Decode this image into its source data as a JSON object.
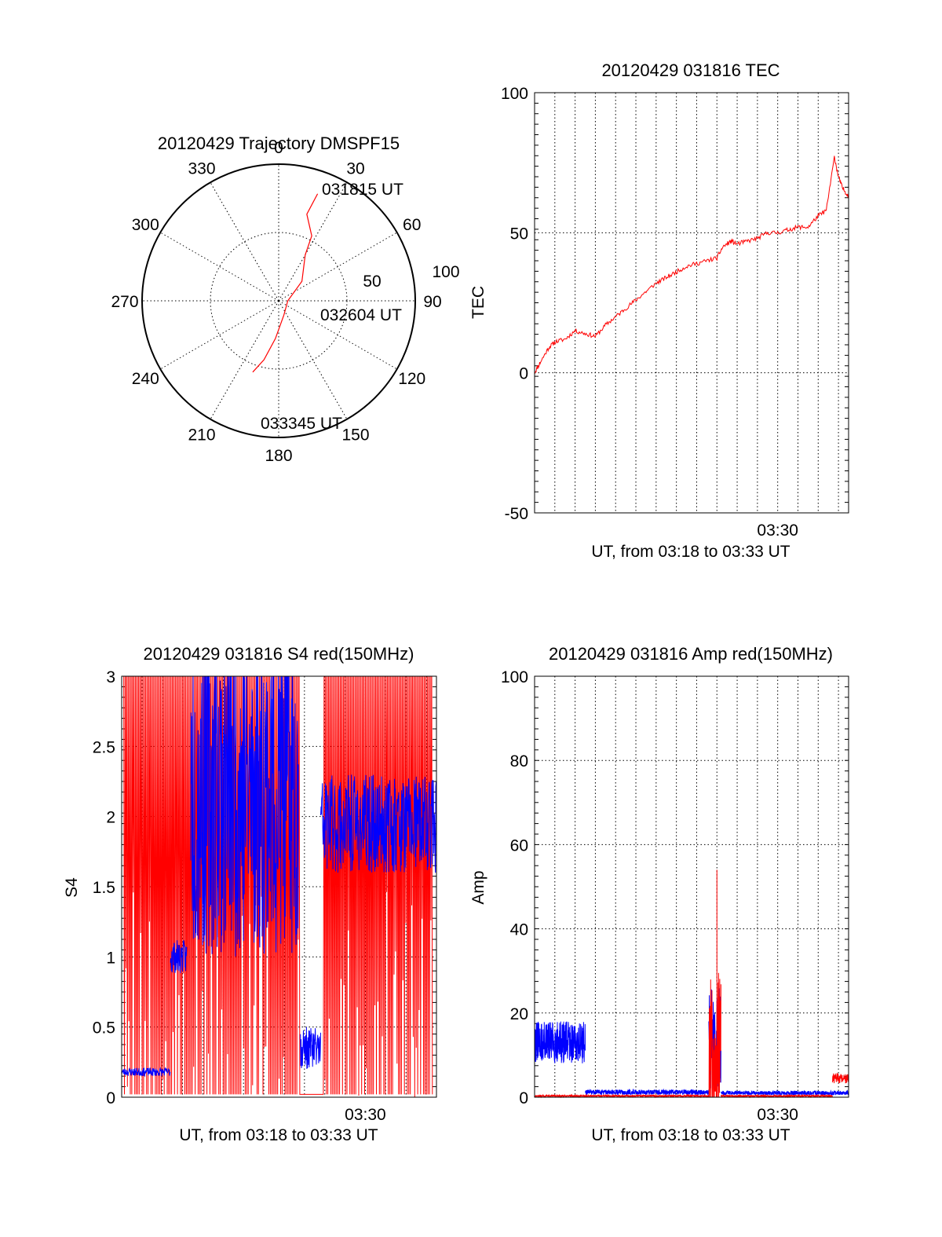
{
  "colors": {
    "red": "#ff0000",
    "blue": "#0000ff",
    "ink": "#000000"
  },
  "chart_data": [
    {
      "id": "polar",
      "type": "polar-trajectory",
      "title": "20120429 Trajectory DMSPF15",
      "azimuth_labels": [
        "0",
        "30",
        "60",
        "90",
        "120",
        "150",
        "180",
        "210",
        "240",
        "270",
        "300",
        "330"
      ],
      "radius_labels": [
        "50",
        "100"
      ],
      "trajectory": {
        "points_az_el": [
          [
            20,
            15
          ],
          [
            18,
            30
          ],
          [
            27,
            42
          ],
          [
            30,
            55
          ],
          [
            50,
            70
          ],
          [
            90,
            84
          ],
          [
            160,
            80
          ],
          [
            185,
            65
          ],
          [
            194,
            50
          ],
          [
            200,
            40
          ]
        ],
        "annotations": [
          {
            "text": "031815 UT"
          },
          {
            "text": "032604 UT"
          },
          {
            "text": "033345 UT"
          }
        ]
      }
    },
    {
      "id": "tec",
      "type": "line",
      "title": "20120429 031816 TEC",
      "xlabel": "UT, from 03:18 to 03:33 UT",
      "ylabel": "TEC",
      "xtick_labels": [
        {
          "t": 12.0,
          "label": "03:30"
        }
      ],
      "xlim": [
        0,
        15.5
      ],
      "ylim": [
        -50,
        100
      ],
      "yticks": [
        -50,
        0,
        50,
        100
      ],
      "series": [
        {
          "color": "red",
          "x": [
            0,
            0.3,
            0.7,
            1,
            1.5,
            2,
            2.5,
            3,
            3.5,
            4,
            4.5,
            5,
            5.5,
            6,
            6.5,
            7,
            7.5,
            8,
            8.5,
            9,
            9.3,
            9.7,
            10,
            10.5,
            11,
            11.5,
            12,
            12.5,
            13,
            13.5,
            14,
            14.4,
            14.8,
            15,
            15.2,
            15.5
          ],
          "y": [
            0,
            4,
            9,
            11,
            12,
            15,
            14,
            13,
            17,
            20,
            23,
            26,
            29,
            32,
            34,
            36,
            38,
            39,
            40,
            41,
            45,
            47,
            46,
            47,
            48,
            50,
            50,
            51,
            52,
            52,
            56,
            58,
            77,
            70,
            66,
            63
          ]
        }
      ]
    },
    {
      "id": "s4",
      "type": "line",
      "title": "20120429 031816 S4 red(150MHz)",
      "xlabel": "UT, from 03:18 to 03:33 UT",
      "ylabel": "S4",
      "xtick_labels": [
        {
          "t": 12.0,
          "label": "03:30"
        }
      ],
      "xlim": [
        0,
        15.5
      ],
      "ylim": [
        0,
        3
      ],
      "yticks": [
        0,
        0.5,
        1,
        1.5,
        2,
        2.5,
        3
      ],
      "ytick_labels": [
        "0",
        "0.5",
        "1",
        "1.5",
        "2",
        "2.5",
        "3"
      ],
      "series": [
        {
          "color": "red",
          "x_start": 0.1,
          "x_end": 15.3,
          "samples": 420,
          "seed": 7,
          "gap": [
            8.8,
            9.9
          ],
          "style": "spiky"
        },
        {
          "color": "blue",
          "segments": [
            {
              "x_start": 0.0,
              "x_end": 2.4,
              "level": 0.18,
              "amp": 0.03
            },
            {
              "x_start": 2.4,
              "x_end": 3.2,
              "level": 1.0,
              "amp": 0.12
            },
            {
              "x_start": 3.4,
              "x_end": 8.7,
              "level": 2.2,
              "amp": 1.2
            },
            {
              "x_start": 8.8,
              "x_end": 9.8,
              "level": 0.35,
              "amp": 0.15
            },
            {
              "x_start": 9.8,
              "x_end": 15.5,
              "level": 1.95,
              "amp": 0.35
            }
          ]
        }
      ]
    },
    {
      "id": "amp",
      "type": "line",
      "title": "20120429 031816 Amp red(150MHz)",
      "xlabel": "UT, from 03:18 to 03:33 UT",
      "ylabel": "Amp",
      "xtick_labels": [
        {
          "t": 12.0,
          "label": "03:30"
        }
      ],
      "xlim": [
        0,
        15.5
      ],
      "ylim": [
        0,
        100
      ],
      "yticks": [
        0,
        20,
        40,
        60,
        80,
        100
      ],
      "series": [
        {
          "color": "red",
          "segments": [
            {
              "x_start": 0.0,
              "x_end": 8.6,
              "level": 0.3,
              "amp": 0.2
            },
            {
              "x_start": 8.6,
              "x_end": 9.2,
              "level": 12,
              "amp": 18
            },
            {
              "x_start": 9.2,
              "x_end": 14.7,
              "level": 0.3,
              "amp": 0.2
            },
            {
              "x_start": 14.7,
              "x_end": 15.5,
              "level": 4.5,
              "amp": 1.2
            }
          ],
          "peak": {
            "x": 9.0,
            "y": 54
          }
        },
        {
          "color": "blue",
          "segments": [
            {
              "x_start": 0.0,
              "x_end": 2.5,
              "level": 13,
              "amp": 5
            },
            {
              "x_start": 2.5,
              "x_end": 8.6,
              "level": 1.2,
              "amp": 0.6
            },
            {
              "x_start": 8.6,
              "x_end": 9.2,
              "level": 14,
              "amp": 12
            },
            {
              "x_start": 9.2,
              "x_end": 15.5,
              "level": 1.0,
              "amp": 0.5
            }
          ]
        }
      ]
    }
  ]
}
